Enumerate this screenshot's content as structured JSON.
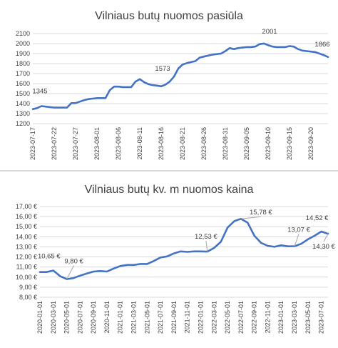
{
  "colors": {
    "series": "#4472c4",
    "grid": "#d9d9d9",
    "text": "#404040",
    "leader": "#a6a6a6"
  },
  "chart_data": [
    {
      "type": "line",
      "title": "Vilniaus butų nuomos pasiūla",
      "xlabel": "",
      "ylabel": "",
      "ylim": [
        1200,
        2100
      ],
      "yticks": [
        1200,
        1300,
        1400,
        1500,
        1600,
        1700,
        1800,
        1900,
        2000,
        2100
      ],
      "ytick_labels": [
        "1200",
        "1300",
        "1400",
        "1500",
        "1600",
        "1700",
        "1800",
        "1900",
        "2000",
        "2100"
      ],
      "xtick_labels": [
        "2023-07-17",
        "2023-07-22",
        "2023-07-27",
        "2023-08-01",
        "2023-08-06",
        "2023-08-11",
        "2023-08-16",
        "2023-08-21",
        "2023-08-26",
        "2023-08-31",
        "2023-09-05",
        "2023-09-10",
        "2023-09-15",
        "2023-09-20"
      ],
      "grid": true,
      "legend": "none",
      "x": [
        "2023-07-17",
        "2023-07-18",
        "2023-07-19",
        "2023-07-20",
        "2023-07-21",
        "2023-07-22",
        "2023-07-23",
        "2023-07-24",
        "2023-07-25",
        "2023-07-26",
        "2023-07-27",
        "2023-07-28",
        "2023-07-29",
        "2023-07-30",
        "2023-07-31",
        "2023-08-01",
        "2023-08-02",
        "2023-08-03",
        "2023-08-04",
        "2023-08-05",
        "2023-08-06",
        "2023-08-07",
        "2023-08-08",
        "2023-08-09",
        "2023-08-10",
        "2023-08-11",
        "2023-08-12",
        "2023-08-13",
        "2023-08-14",
        "2023-08-15",
        "2023-08-16",
        "2023-08-17",
        "2023-08-18",
        "2023-08-19",
        "2023-08-20",
        "2023-08-21",
        "2023-08-22",
        "2023-08-23",
        "2023-08-24",
        "2023-08-25",
        "2023-08-26",
        "2023-08-27",
        "2023-08-28",
        "2023-08-29",
        "2023-08-30",
        "2023-08-31",
        "2023-09-01",
        "2023-09-02",
        "2023-09-03",
        "2023-09-04",
        "2023-09-05",
        "2023-09-06",
        "2023-09-07",
        "2023-09-08",
        "2023-09-09",
        "2023-09-10",
        "2023-09-11",
        "2023-09-12",
        "2023-09-13",
        "2023-09-14",
        "2023-09-15",
        "2023-09-16",
        "2023-09-17",
        "2023-09-18",
        "2023-09-19",
        "2023-09-20",
        "2023-09-21",
        "2023-09-22",
        "2023-09-23",
        "2023-09-24"
      ],
      "values": [
        1345,
        1355,
        1375,
        1370,
        1365,
        1360,
        1360,
        1360,
        1360,
        1405,
        1405,
        1420,
        1435,
        1445,
        1450,
        1455,
        1455,
        1455,
        1535,
        1570,
        1570,
        1565,
        1565,
        1565,
        1620,
        1645,
        1615,
        1595,
        1585,
        1580,
        1573,
        1590,
        1620,
        1670,
        1750,
        1790,
        1805,
        1815,
        1825,
        1860,
        1870,
        1880,
        1890,
        1895,
        1900,
        1925,
        1955,
        1945,
        1955,
        1960,
        1965,
        1965,
        1970,
        1995,
        2001,
        1985,
        1970,
        1965,
        1965,
        1965,
        1975,
        1970,
        1945,
        1930,
        1925,
        1920,
        1915,
        1900,
        1885,
        1866
      ],
      "annotations": [
        {
          "x": "2023-07-17",
          "label": "1345"
        },
        {
          "x": "2023-08-16",
          "label": "1573"
        },
        {
          "x": "2023-09-09",
          "label": "2001"
        },
        {
          "x": "2023-09-24",
          "label": "1866"
        }
      ]
    },
    {
      "type": "line",
      "title": "Vilniaus butų kv. m nuomos kaina",
      "xlabel": "",
      "ylabel": "",
      "ylim": [
        8,
        17
      ],
      "yticks": [
        8,
        9,
        10,
        11,
        12,
        13,
        14,
        15,
        16,
        17
      ],
      "ytick_labels": [
        "8,00 €",
        "9,00 €",
        "10,00 €",
        "11,00 €",
        "12,00 €",
        "13,00 €",
        "14,00 €",
        "15,00 €",
        "16,00 €",
        "17,00 €"
      ],
      "xtick_labels": [
        "2020-01-01",
        "2020-03-01",
        "2020-05-01",
        "2020-07-01",
        "2020-09-01",
        "2020-11-01",
        "2021-01-01",
        "2021-03-01",
        "2021-05-01",
        "2021-07-01",
        "2021-09-01",
        "2021-11-01",
        "2022-01-01",
        "2022-03-01",
        "2022-05-01",
        "2022-07-01",
        "2022-09-01",
        "2022-11-01",
        "2023-01-01",
        "2023-03-01",
        "2023-05-01",
        "2023-07-01"
      ],
      "grid": true,
      "legend": "none",
      "x": [
        "2020-01",
        "2020-02",
        "2020-03",
        "2020-04",
        "2020-05",
        "2020-06",
        "2020-07",
        "2020-08",
        "2020-09",
        "2020-10",
        "2020-11",
        "2020-12",
        "2021-01",
        "2021-02",
        "2021-03",
        "2021-04",
        "2021-05",
        "2021-06",
        "2021-07",
        "2021-08",
        "2021-09",
        "2021-10",
        "2021-11",
        "2021-12",
        "2022-01",
        "2022-02",
        "2022-03",
        "2022-04",
        "2022-05",
        "2022-06",
        "2022-07",
        "2022-08",
        "2022-09",
        "2022-10",
        "2022-11",
        "2022-12",
        "2023-01",
        "2023-02",
        "2023-03",
        "2023-04",
        "2023-05",
        "2023-06",
        "2023-07",
        "2023-08"
      ],
      "values": [
        10.5,
        10.5,
        10.65,
        10.1,
        9.8,
        9.9,
        10.15,
        10.35,
        10.55,
        10.6,
        10.55,
        10.85,
        11.1,
        11.2,
        11.2,
        11.3,
        11.3,
        11.6,
        11.95,
        12.05,
        12.35,
        12.55,
        12.5,
        12.55,
        12.55,
        12.53,
        12.9,
        13.5,
        14.9,
        15.55,
        15.78,
        15.4,
        14.1,
        13.4,
        13.1,
        13.0,
        13.15,
        13.05,
        13.07,
        13.3,
        13.75,
        14.1,
        14.52,
        14.3
      ],
      "annotations": [
        {
          "x": "2020-03",
          "label": "10,65 €"
        },
        {
          "x": "2020-05",
          "label": "9,80 €"
        },
        {
          "x": "2022-02",
          "label": "12,53 €"
        },
        {
          "x": "2022-07",
          "label": "15,78 €"
        },
        {
          "x": "2023-03",
          "label": "13,07 €"
        },
        {
          "x": "2023-07",
          "label": "14,52 €"
        },
        {
          "x": "2023-08",
          "label": "14,30 €"
        }
      ]
    }
  ]
}
